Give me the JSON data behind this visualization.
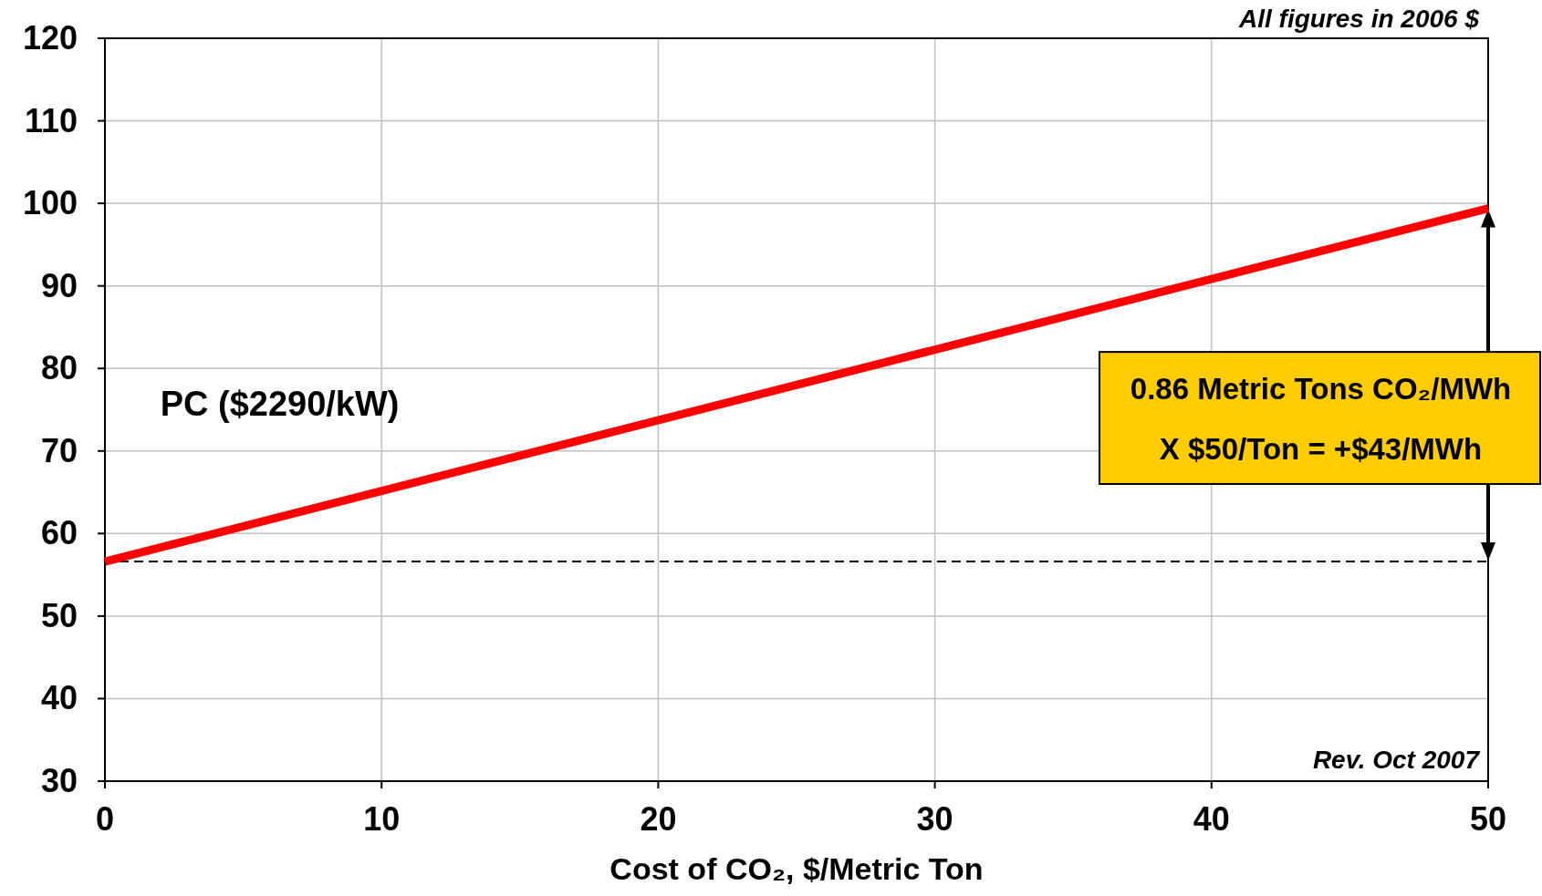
{
  "chart_data": {
    "type": "line",
    "xlabel": "Cost of CO₂, $/Metric Ton",
    "x": [
      0,
      50
    ],
    "series": [
      {
        "name": "PC ($2290/kW)",
        "color": "#ff0000",
        "values": [
          56.6,
          99.4
        ]
      }
    ],
    "xlim": [
      0,
      50
    ],
    "xticks": [
      0,
      10,
      20,
      30,
      40,
      50
    ],
    "ylim": [
      30,
      120
    ],
    "yticks": [
      30,
      40,
      50,
      60,
      70,
      80,
      90,
      100,
      110,
      120
    ],
    "grid": true,
    "marker": "none",
    "line_style": "solid",
    "ref_lines": [
      {
        "axis": "y",
        "value": 56.6,
        "color": "#000000",
        "line_style": "dashed"
      }
    ],
    "annotations": [
      "All figures in 2006 $",
      "Rev. Oct 2007",
      "0.86 Metric Tons CO₂/MWh\nX $50/Ton = +$43/MWh"
    ]
  }
}
